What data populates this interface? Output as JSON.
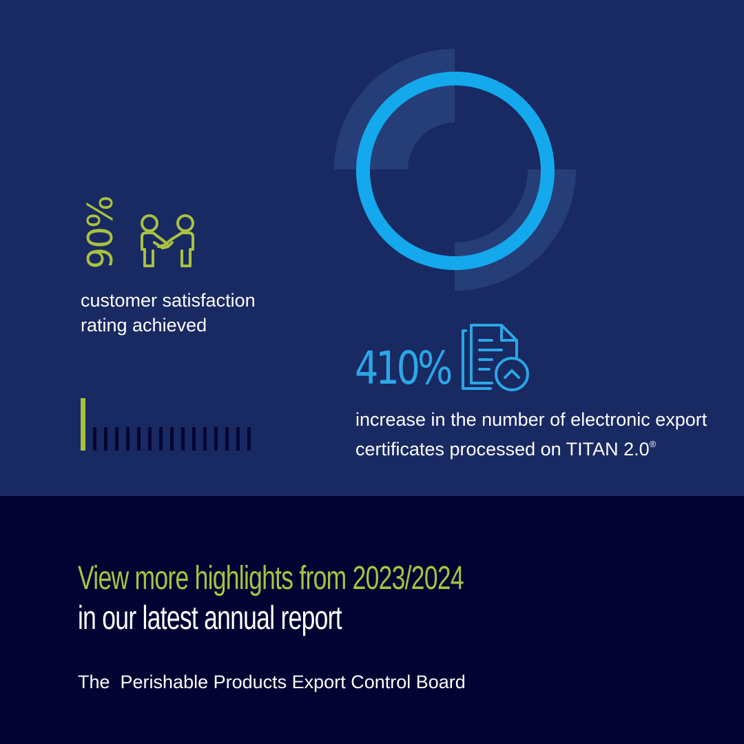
{
  "stats": {
    "satisfaction": {
      "value": "90%",
      "description": "customer satisfaction rating achieved",
      "icon": "handshake-icon",
      "level": 0.9
    },
    "certificates": {
      "value": "410%",
      "description": "increase in the number of electronic export certificates processed on TITAN 2.0",
      "trademark": "®",
      "icon": "document-upload-icon"
    }
  },
  "cta": {
    "line1": "View more highlights from 2023/2024",
    "line2": "in our latest annual report"
  },
  "organization": "The  Perishable Products Export Control Board",
  "colors": {
    "navy": "#192962",
    "dark_navy": "#020333",
    "lime": "#a9c23f",
    "cyan": "#14a8ec",
    "ring_shade": "#263e78",
    "white": "#ffffff"
  }
}
